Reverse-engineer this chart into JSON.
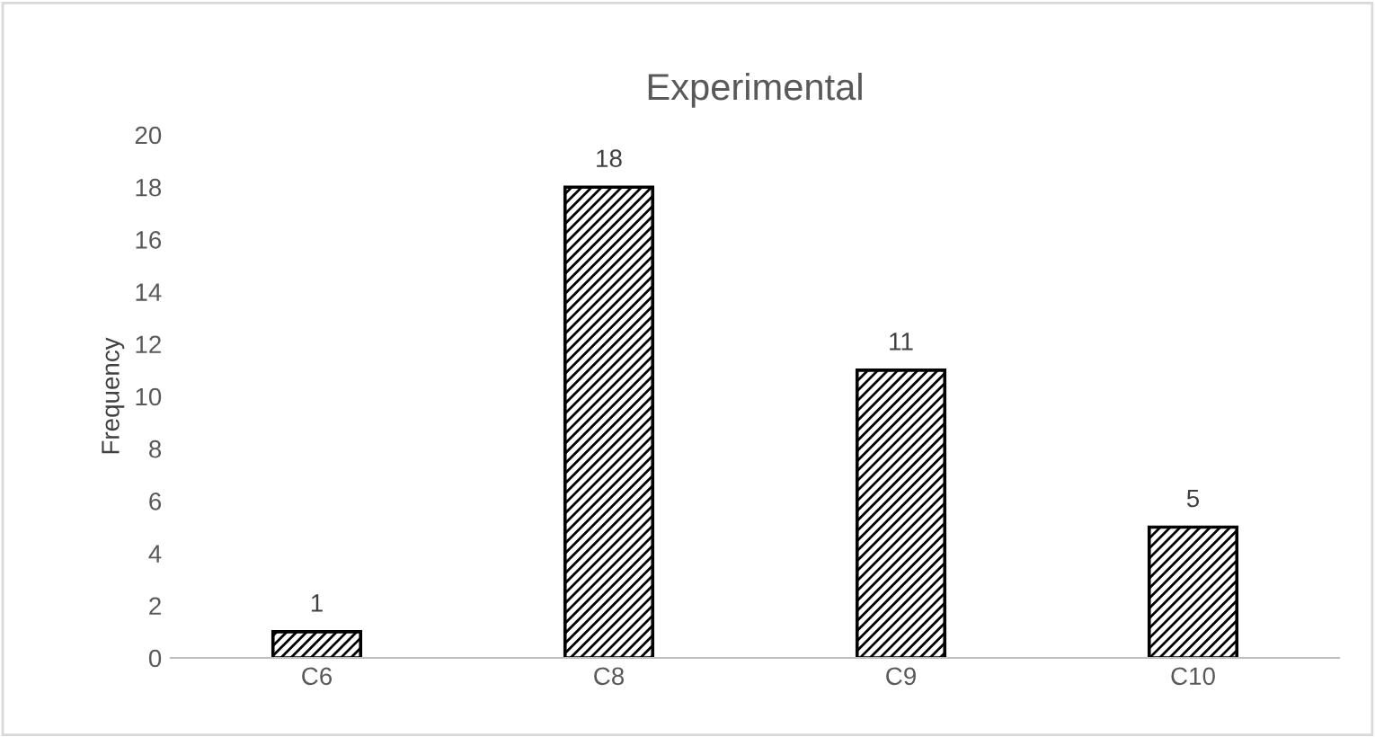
{
  "chart_data": {
    "type": "bar",
    "title": "Experimental",
    "ylabel": "Frequency",
    "categories": [
      "C6",
      "C8",
      "C9",
      "C10"
    ],
    "values": [
      1,
      18,
      11,
      5
    ],
    "color": "#000000",
    "ylim": [
      0,
      20
    ],
    "yticks": [
      0,
      2,
      4,
      6,
      8,
      10,
      12,
      14,
      16,
      18,
      20
    ],
    "grid": false,
    "data_labels": true
  }
}
